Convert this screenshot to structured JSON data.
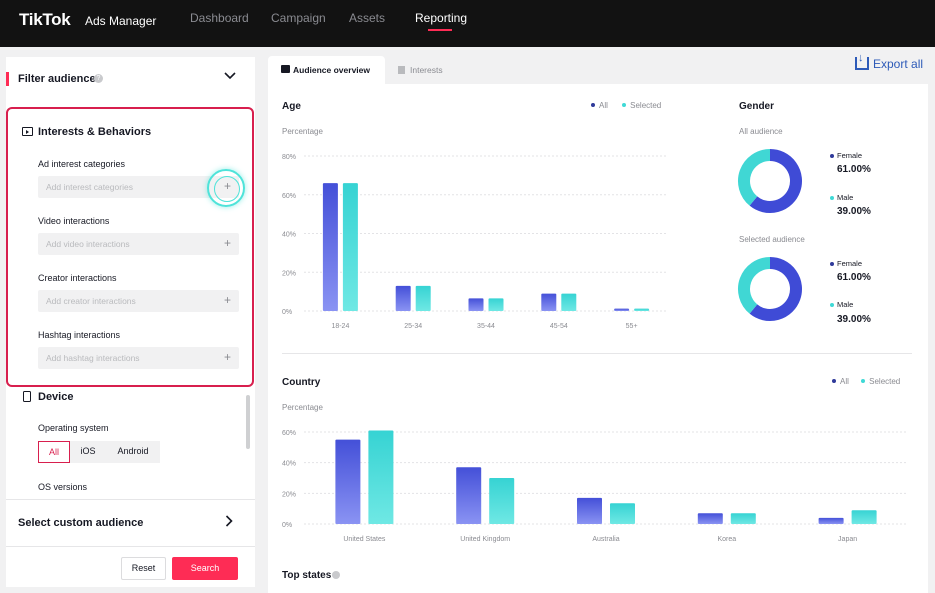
{
  "header": {
    "logo": "TikTok",
    "logo_sub": "Ads Manager",
    "nav": [
      "Dashboard",
      "Campaign",
      "Assets",
      "Reporting"
    ],
    "active_nav": "Reporting"
  },
  "sidebar": {
    "filter_title": "Filter audience",
    "interests": {
      "title": "Interests & Behaviors",
      "sections": [
        {
          "label": "Ad interest categories",
          "placeholder": "Add interest categories"
        },
        {
          "label": "Video interactions",
          "placeholder": "Add video interactions"
        },
        {
          "label": "Creator interactions",
          "placeholder": "Add creator interactions"
        },
        {
          "label": "Hashtag interactions",
          "placeholder": "Add hashtag interactions"
        }
      ]
    },
    "device": {
      "title": "Device",
      "os_label": "Operating system",
      "os_options": [
        "All",
        "iOS",
        "Android"
      ],
      "os_selected": "All",
      "os_versions_label": "OS versions"
    },
    "custom_audience": "Select custom audience",
    "reset": "Reset",
    "search": "Search"
  },
  "tabs": {
    "active": "Audience overview",
    "inactive": "Interests",
    "export": "Export all"
  },
  "legend": {
    "all": "All",
    "selected": "Selected"
  },
  "colors": {
    "all": "#5a5fe6",
    "selected": "#3fd9d6",
    "accent": "#fe2c55"
  },
  "gender": {
    "title": "Gender",
    "groups": [
      {
        "label": "All audience",
        "female_label": "Female",
        "female": "61.00%",
        "male_label": "Male",
        "male": "39.00%"
      },
      {
        "label": "Selected audience",
        "female_label": "Female",
        "female": "61.00%",
        "male_label": "Male",
        "male": "39.00%"
      }
    ]
  },
  "top_states": "Top states",
  "chart_data": [
    {
      "type": "bar",
      "title": "Age",
      "ylabel": "Percentage",
      "categories": [
        "18-24",
        "25-34",
        "35-44",
        "45-54",
        "55+"
      ],
      "yticks": [
        "0%",
        "20%",
        "40%",
        "60%",
        "80%"
      ],
      "ylim": [
        0,
        80
      ],
      "series": [
        {
          "name": "All",
          "values": [
            66,
            13,
            6.5,
            9,
            1.2
          ]
        },
        {
          "name": "Selected",
          "values": [
            66,
            13,
            6.5,
            9,
            1.2
          ]
        }
      ]
    },
    {
      "type": "bar",
      "title": "Country",
      "ylabel": "Percentage",
      "categories": [
        "United States",
        "United Kingdom",
        "Australia",
        "Korea",
        "Japan"
      ],
      "yticks": [
        "0%",
        "20%",
        "40%",
        "60%"
      ],
      "ylim": [
        0,
        60
      ],
      "series": [
        {
          "name": "All",
          "values": [
            55,
            37,
            17,
            7,
            4
          ]
        },
        {
          "name": "Selected",
          "values": [
            61,
            30,
            13.5,
            7,
            9
          ]
        }
      ]
    },
    {
      "type": "pie",
      "title": "All audience",
      "categories": [
        "Female",
        "Male"
      ],
      "values": [
        61,
        39
      ]
    },
    {
      "type": "pie",
      "title": "Selected audience",
      "categories": [
        "Female",
        "Male"
      ],
      "values": [
        61,
        39
      ]
    }
  ]
}
